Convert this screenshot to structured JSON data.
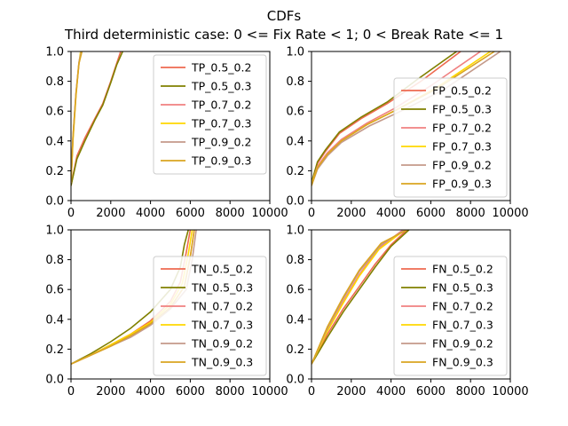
{
  "figure": {
    "title": "CDFs",
    "subtitle": "Third deterministic case: 0 <= Fix Rate < 1; 0 < Break Rate <= 1"
  },
  "series_colors": [
    "#ee6a50",
    "#808000",
    "#f08080",
    "#ffd700",
    "#c49a8a",
    "#daa520"
  ],
  "chart_data": [
    {
      "type": "line",
      "panel": "top-left",
      "xlim": [
        0,
        10000
      ],
      "ylim": [
        0,
        1.0
      ],
      "xticks": [
        "0",
        "2000",
        "4000",
        "6000",
        "8000",
        "10000"
      ],
      "yticks": [
        "0.0",
        "0.2",
        "0.4",
        "0.6",
        "0.8",
        "1.0"
      ],
      "legend": "top-right",
      "series": [
        {
          "name": "TP_0.5_0.2",
          "x": [
            0,
            300,
            700,
            1200,
            1600,
            2000,
            2300,
            2500
          ],
          "y": [
            0.1,
            0.3,
            0.42,
            0.55,
            0.65,
            0.8,
            0.92,
            1.0
          ]
        },
        {
          "name": "TP_0.5_0.3",
          "x": [
            0,
            300,
            700,
            1200,
            1600,
            2000,
            2300,
            2600
          ],
          "y": [
            0.1,
            0.28,
            0.4,
            0.54,
            0.64,
            0.79,
            0.91,
            1.0
          ]
        },
        {
          "name": "TP_0.7_0.2",
          "x": [
            0,
            100,
            250,
            400,
            500
          ],
          "y": [
            0.12,
            0.42,
            0.72,
            0.92,
            1.0
          ]
        },
        {
          "name": "TP_0.7_0.3",
          "x": [
            0,
            100,
            250,
            380,
            480
          ],
          "y": [
            0.12,
            0.4,
            0.7,
            0.9,
            1.0
          ]
        },
        {
          "name": "TP_0.9_0.2",
          "x": [
            0,
            100,
            250,
            400,
            520
          ],
          "y": [
            0.12,
            0.43,
            0.72,
            0.93,
            1.0
          ]
        },
        {
          "name": "TP_0.9_0.3",
          "x": [
            0,
            100,
            250,
            400,
            550
          ],
          "y": [
            0.12,
            0.42,
            0.71,
            0.92,
            1.0
          ]
        }
      ]
    },
    {
      "type": "line",
      "panel": "top-right",
      "xlim": [
        0,
        10000
      ],
      "ylim": [
        0,
        1.0
      ],
      "xticks": [
        "0",
        "2000",
        "4000",
        "6000",
        "8000",
        "10000"
      ],
      "yticks": [
        "0.0",
        "0.2",
        "0.4",
        "0.6",
        "0.8",
        "1.0"
      ],
      "legend": "lower-right",
      "series": [
        {
          "name": "FP_0.5_0.2",
          "x": [
            0,
            300,
            700,
            1400,
            2500,
            3800,
            5500,
            7500
          ],
          "y": [
            0.12,
            0.25,
            0.33,
            0.45,
            0.55,
            0.65,
            0.8,
            1.0
          ]
        },
        {
          "name": "FP_0.5_0.3",
          "x": [
            0,
            300,
            700,
            1400,
            2500,
            3800,
            5300,
            7300
          ],
          "y": [
            0.12,
            0.26,
            0.34,
            0.46,
            0.56,
            0.66,
            0.81,
            1.0
          ]
        },
        {
          "name": "FP_0.7_0.2",
          "x": [
            0,
            300,
            800,
            1500,
            2800,
            4200,
            6000,
            8500
          ],
          "y": [
            0.11,
            0.23,
            0.32,
            0.41,
            0.52,
            0.62,
            0.77,
            1.0
          ]
        },
        {
          "name": "FP_0.7_0.3",
          "x": [
            0,
            300,
            800,
            1500,
            2800,
            4300,
            6200,
            9000
          ],
          "y": [
            0.11,
            0.22,
            0.31,
            0.4,
            0.51,
            0.61,
            0.75,
            1.0
          ]
        },
        {
          "name": "FP_0.9_0.2",
          "x": [
            0,
            300,
            800,
            1500,
            2900,
            4500,
            6600,
            9500
          ],
          "y": [
            0.1,
            0.21,
            0.3,
            0.39,
            0.5,
            0.6,
            0.74,
            1.0
          ]
        },
        {
          "name": "FP_0.9_0.3",
          "x": [
            0,
            300,
            800,
            1500,
            2800,
            4300,
            6300,
            9200
          ],
          "y": [
            0.1,
            0.22,
            0.31,
            0.4,
            0.51,
            0.61,
            0.75,
            1.0
          ]
        }
      ]
    },
    {
      "type": "line",
      "panel": "bottom-left",
      "xlim": [
        0,
        10000
      ],
      "ylim": [
        0,
        1.0
      ],
      "xticks": [
        "0",
        "2000",
        "4000",
        "6000",
        "8000",
        "10000"
      ],
      "yticks": [
        "0.0",
        "0.2",
        "0.4",
        "0.6",
        "0.8",
        "1.0"
      ],
      "legend": "lower-right",
      "series": [
        {
          "name": "TN_0.5_0.2",
          "x": [
            0,
            1000,
            2000,
            3000,
            4000,
            5000,
            5500,
            5800,
            6000
          ],
          "y": [
            0.1,
            0.16,
            0.23,
            0.3,
            0.39,
            0.52,
            0.65,
            0.85,
            1.0
          ]
        },
        {
          "name": "TN_0.5_0.3",
          "x": [
            0,
            1000,
            2000,
            3000,
            4000,
            5000,
            5500,
            5700,
            5900
          ],
          "y": [
            0.1,
            0.17,
            0.25,
            0.34,
            0.45,
            0.6,
            0.75,
            0.9,
            1.0
          ]
        },
        {
          "name": "TN_0.7_0.2",
          "x": [
            0,
            1000,
            2000,
            3000,
            4000,
            5000,
            5700,
            6000,
            6200
          ],
          "y": [
            0.1,
            0.16,
            0.22,
            0.29,
            0.37,
            0.48,
            0.62,
            0.82,
            1.0
          ]
        },
        {
          "name": "TN_0.7_0.3",
          "x": [
            0,
            1000,
            2000,
            3000,
            4000,
            5000,
            5600,
            5900,
            6100
          ],
          "y": [
            0.1,
            0.16,
            0.23,
            0.3,
            0.38,
            0.5,
            0.64,
            0.84,
            1.0
          ]
        },
        {
          "name": "TN_0.9_0.2",
          "x": [
            0,
            1000,
            2000,
            3000,
            4000,
            5000,
            5800,
            6100,
            6300
          ],
          "y": [
            0.1,
            0.16,
            0.22,
            0.28,
            0.36,
            0.47,
            0.6,
            0.8,
            1.0
          ]
        },
        {
          "name": "TN_0.9_0.3",
          "x": [
            0,
            1000,
            2000,
            3000,
            4000,
            5000,
            5700,
            6000,
            6200
          ],
          "y": [
            0.1,
            0.16,
            0.22,
            0.29,
            0.37,
            0.48,
            0.62,
            0.82,
            1.0
          ]
        }
      ]
    },
    {
      "type": "line",
      "panel": "bottom-right",
      "xlim": [
        0,
        10000
      ],
      "ylim": [
        0,
        1.0
      ],
      "xticks": [
        "0",
        "2000",
        "4000",
        "6000",
        "8000",
        "10000"
      ],
      "yticks": [
        "0.0",
        "0.2",
        "0.4",
        "0.6",
        "0.8",
        "1.0"
      ],
      "legend": "lower-right",
      "series": [
        {
          "name": "FN_0.5_0.2",
          "x": [
            0,
            800,
            1600,
            2400,
            3200,
            4000,
            4800
          ],
          "y": [
            0.1,
            0.3,
            0.47,
            0.62,
            0.77,
            0.9,
            1.0
          ]
        },
        {
          "name": "FN_0.5_0.3",
          "x": [
            0,
            800,
            1600,
            2400,
            3200,
            4000,
            4900
          ],
          "y": [
            0.1,
            0.28,
            0.45,
            0.6,
            0.75,
            0.89,
            1.0
          ]
        },
        {
          "name": "FN_0.7_0.2",
          "x": [
            0,
            800,
            1600,
            2400,
            3400,
            4600
          ],
          "y": [
            0.1,
            0.33,
            0.52,
            0.7,
            0.88,
            1.0
          ]
        },
        {
          "name": "FN_0.7_0.3",
          "x": [
            0,
            800,
            1600,
            2400,
            3400,
            4700
          ],
          "y": [
            0.1,
            0.32,
            0.51,
            0.69,
            0.87,
            1.0
          ]
        },
        {
          "name": "FN_0.9_0.2",
          "x": [
            0,
            800,
            1600,
            2400,
            3500,
            4700
          ],
          "y": [
            0.1,
            0.34,
            0.54,
            0.72,
            0.9,
            1.0
          ]
        },
        {
          "name": "FN_0.9_0.3",
          "x": [
            0,
            800,
            1600,
            2400,
            3500,
            4800
          ],
          "y": [
            0.1,
            0.35,
            0.55,
            0.73,
            0.91,
            1.0
          ]
        }
      ]
    }
  ]
}
